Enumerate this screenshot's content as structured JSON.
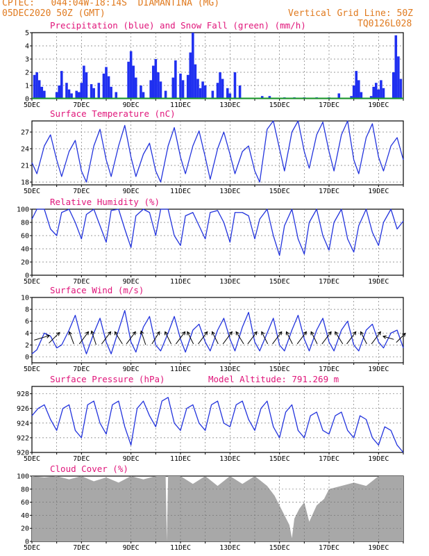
{
  "header": {
    "left_line1": "CPTEC:   044:04W-18:14S  DIAMANTINA (MG)",
    "left_line2": "05DEC2020 50Z (GMT)",
    "right_line1": "Vertical Grid Line: 50Z",
    "right_line2": "TQ0126L028"
  },
  "colors": {
    "header": "#e07a1f",
    "panel_title": "#e0157a",
    "line": "#2233dd",
    "precip_bar": "#1f2ff0",
    "snow": "#1a9a2a",
    "cloud": "#a8a8a8",
    "grid": "#777777"
  },
  "chart_data": [
    {
      "type": "bar",
      "title": "Precipitation (blue) and Snow Fall (green) (mm/h)",
      "x_labels": [
        "5DEC",
        "7DEC",
        "9DEC",
        "11DEC",
        "13DEC",
        "15DEC",
        "17DEC",
        "19DEC"
      ],
      "ylim": [
        0,
        5
      ],
      "yticks": [
        0,
        1,
        2,
        3,
        4,
        5
      ],
      "days": [
        5,
        20
      ],
      "series": [
        {
          "name": "Precipitation",
          "x": [
            5.1,
            5.2,
            5.3,
            5.4,
            5.5,
            6.0,
            6.1,
            6.2,
            6.4,
            6.5,
            6.6,
            6.8,
            6.9,
            7.0,
            7.1,
            7.2,
            7.4,
            7.5,
            7.7,
            7.9,
            8.0,
            8.1,
            8.2,
            8.4,
            8.9,
            9.0,
            9.1,
            9.2,
            9.4,
            9.5,
            9.8,
            9.9,
            10.0,
            10.1,
            10.2,
            10.4,
            10.7,
            10.8,
            11.0,
            11.1,
            11.3,
            11.4,
            11.5,
            11.6,
            11.7,
            11.8,
            11.9,
            12.0,
            12.3,
            12.5,
            12.6,
            12.7,
            12.9,
            13.0,
            13.2,
            13.4,
            14.3,
            14.6,
            15.2,
            15.6,
            16.0,
            16.5,
            17.0,
            17.4,
            17.9,
            18.0,
            18.1,
            18.2,
            18.3,
            18.7,
            18.8,
            18.9,
            19.0,
            19.1,
            19.2,
            19.6,
            19.7,
            19.8,
            19.9
          ],
          "values": [
            1.8,
            2.0,
            1.4,
            0.9,
            0.6,
            0.5,
            1.0,
            2.1,
            1.2,
            0.7,
            0.4,
            0.6,
            0.5,
            1.2,
            2.5,
            2.0,
            1.1,
            0.8,
            1.2,
            1.9,
            2.4,
            1.7,
            0.9,
            0.5,
            2.8,
            3.6,
            2.5,
            1.6,
            1.0,
            0.5,
            1.4,
            2.5,
            3.0,
            2.0,
            1.3,
            0.6,
            1.6,
            2.9,
            1.9,
            1.4,
            1.8,
            3.5,
            5.0,
            2.6,
            1.5,
            0.8,
            1.3,
            1.0,
            0.6,
            1.2,
            2.0,
            1.5,
            0.8,
            0.4,
            2.0,
            1.0,
            0.2,
            0.2,
            0.1,
            0.1,
            0.1,
            0.1,
            0.1,
            0.4,
            0.2,
            1.0,
            2.1,
            1.4,
            0.5,
            0.2,
            0.9,
            1.2,
            0.7,
            1.4,
            0.8,
            2.0,
            4.8,
            3.2,
            1.5
          ]
        },
        {
          "name": "Snow Fall",
          "x": [
            5,
            20
          ],
          "values": [
            0,
            0
          ]
        }
      ]
    },
    {
      "type": "line",
      "title": "Surface Temperature (nC)",
      "x_labels": [
        "5DEC",
        "7DEC",
        "9DEC",
        "11DEC",
        "13DEC",
        "15DEC",
        "17DEC",
        "19DEC"
      ],
      "ylim": [
        17.5,
        29
      ],
      "yticks": [
        18,
        21,
        24,
        27
      ],
      "days": [
        5,
        20
      ],
      "series": [
        {
          "name": "Temperature",
          "x": [
            5.0,
            5.2,
            5.5,
            5.75,
            6.0,
            6.2,
            6.5,
            6.75,
            7.0,
            7.2,
            7.5,
            7.75,
            8.0,
            8.2,
            8.5,
            8.75,
            9.0,
            9.2,
            9.5,
            9.75,
            10.0,
            10.2,
            10.5,
            10.75,
            11.0,
            11.2,
            11.5,
            11.75,
            12.0,
            12.2,
            12.5,
            12.75,
            13.0,
            13.2,
            13.5,
            13.75,
            14.0,
            14.2,
            14.5,
            14.75,
            15.0,
            15.2,
            15.5,
            15.75,
            16.0,
            16.2,
            16.5,
            16.75,
            17.0,
            17.2,
            17.5,
            17.75,
            18.0,
            18.2,
            18.5,
            18.75,
            19.0,
            19.2,
            19.5,
            19.75,
            20.0
          ],
          "values": [
            21.5,
            19.5,
            24.5,
            26.5,
            22.0,
            19.0,
            23.5,
            25.5,
            20.0,
            18.0,
            24.5,
            27.5,
            22.0,
            19.0,
            24.5,
            28.2,
            22.5,
            19.0,
            23.0,
            25.0,
            20.0,
            18.0,
            24.5,
            27.8,
            22.5,
            19.5,
            24.5,
            27.2,
            22.5,
            18.5,
            24.0,
            27.0,
            23.0,
            19.5,
            23.5,
            24.5,
            20.0,
            18.0,
            27.5,
            29.0,
            24.0,
            20.0,
            27.0,
            29.0,
            23.5,
            20.5,
            26.5,
            28.8,
            23.5,
            20.0,
            26.5,
            29.0,
            22.0,
            19.5,
            26.0,
            28.5,
            22.5,
            20.0,
            24.5,
            26.0,
            22.0
          ]
        }
      ]
    },
    {
      "type": "line",
      "title": "Relative Humidity (%)",
      "x_labels": [
        "5DEC",
        "7DEC",
        "9DEC",
        "11DEC",
        "13DEC",
        "15DEC",
        "17DEC",
        "19DEC"
      ],
      "ylim": [
        0,
        100
      ],
      "yticks": [
        0,
        20,
        40,
        60,
        80,
        100
      ],
      "days": [
        5,
        20
      ],
      "series": [
        {
          "name": "Humidity",
          "x": [
            5.0,
            5.2,
            5.5,
            5.75,
            6.0,
            6.2,
            6.5,
            6.75,
            7.0,
            7.2,
            7.5,
            7.75,
            8.0,
            8.2,
            8.5,
            8.75,
            9.0,
            9.2,
            9.5,
            9.75,
            10.0,
            10.2,
            10.5,
            10.75,
            11.0,
            11.2,
            11.5,
            11.75,
            12.0,
            12.2,
            12.5,
            12.75,
            13.0,
            13.2,
            13.5,
            13.75,
            14.0,
            14.2,
            14.5,
            14.75,
            15.0,
            15.2,
            15.5,
            15.75,
            16.0,
            16.2,
            16.5,
            16.75,
            17.0,
            17.2,
            17.5,
            17.75,
            18.0,
            18.2,
            18.5,
            18.75,
            19.0,
            19.2,
            19.5,
            19.75,
            20.0
          ],
          "values": [
            85,
            100,
            100,
            70,
            60,
            95,
            100,
            80,
            55,
            92,
            100,
            75,
            50,
            98,
            100,
            70,
            42,
            90,
            100,
            95,
            60,
            100,
            100,
            60,
            45,
            90,
            95,
            75,
            55,
            95,
            98,
            80,
            50,
            95,
            95,
            90,
            55,
            85,
            100,
            60,
            30,
            75,
            100,
            55,
            32,
            80,
            100,
            60,
            38,
            80,
            100,
            55,
            35,
            75,
            100,
            65,
            45,
            80,
            100,
            70,
            82
          ]
        }
      ]
    },
    {
      "type": "line",
      "title": "Surface Wind (m/s)",
      "x_labels": [
        "5DEC",
        "7DEC",
        "9DEC",
        "11DEC",
        "13DEC",
        "15DEC",
        "17DEC",
        "19DEC"
      ],
      "ylim": [
        -1,
        10
      ],
      "yticks": [
        0,
        2,
        4,
        6,
        8,
        10
      ],
      "days": [
        5,
        20
      ],
      "series": [
        {
          "name": "Wind speed",
          "x": [
            5.0,
            5.2,
            5.5,
            5.75,
            6.0,
            6.2,
            6.5,
            6.75,
            7.0,
            7.2,
            7.5,
            7.75,
            8.0,
            8.2,
            8.5,
            8.75,
            9.0,
            9.2,
            9.5,
            9.75,
            10.0,
            10.2,
            10.5,
            10.75,
            11.0,
            11.2,
            11.5,
            11.75,
            12.0,
            12.2,
            12.5,
            12.75,
            13.0,
            13.2,
            13.5,
            13.75,
            14.0,
            14.2,
            14.5,
            14.75,
            15.0,
            15.2,
            15.5,
            15.75,
            16.0,
            16.2,
            16.5,
            16.75,
            17.0,
            17.2,
            17.5,
            17.75,
            18.0,
            18.2,
            18.5,
            18.75,
            19.0,
            19.2,
            19.5,
            19.75,
            20.0
          ],
          "values": [
            0.5,
            1.2,
            4.0,
            3.5,
            1.5,
            2.0,
            4.5,
            7.0,
            3.0,
            0.5,
            4.0,
            6.5,
            2.5,
            0.5,
            4.5,
            7.8,
            2.5,
            0.8,
            5.0,
            6.8,
            2.0,
            1.0,
            4.0,
            6.8,
            3.0,
            0.8,
            4.5,
            5.5,
            2.5,
            1.0,
            4.5,
            6.5,
            3.0,
            1.0,
            5.0,
            7.5,
            2.5,
            1.0,
            4.0,
            6.5,
            2.0,
            1.0,
            4.5,
            7.0,
            3.0,
            1.0,
            4.5,
            6.5,
            2.5,
            1.0,
            4.5,
            6.0,
            2.0,
            1.0,
            4.5,
            5.5,
            2.5,
            1.5,
            4.0,
            4.5,
            1.5
          ]
        }
      ],
      "arrows": [
        {
          "x": 5.4,
          "u": 1,
          "v": 0.3
        },
        {
          "x": 5.9,
          "u": 0.7,
          "v": 0.7
        },
        {
          "x": 6.6,
          "u": -0.3,
          "v": 0.8
        },
        {
          "x": 7.1,
          "u": 0.6,
          "v": 0.8
        },
        {
          "x": 7.5,
          "u": -0.3,
          "v": 0.9
        },
        {
          "x": 8.0,
          "u": 0.6,
          "v": 0.8
        },
        {
          "x": 8.5,
          "u": -0.5,
          "v": 0.8
        },
        {
          "x": 9.0,
          "u": 0.6,
          "v": 0.8
        },
        {
          "x": 9.5,
          "u": -0.3,
          "v": 0.9
        },
        {
          "x": 10.0,
          "u": 0.5,
          "v": 0.8
        },
        {
          "x": 10.5,
          "u": -0.4,
          "v": 0.8
        },
        {
          "x": 11.0,
          "u": 0.6,
          "v": 0.8
        },
        {
          "x": 11.4,
          "u": -0.4,
          "v": 0.8
        },
        {
          "x": 11.9,
          "u": 0.6,
          "v": 0.8
        },
        {
          "x": 12.4,
          "u": -0.4,
          "v": 0.8
        },
        {
          "x": 12.9,
          "u": 0.6,
          "v": 0.8
        },
        {
          "x": 13.4,
          "u": -0.5,
          "v": 0.8
        },
        {
          "x": 13.9,
          "u": 0.6,
          "v": 0.8
        },
        {
          "x": 14.4,
          "u": -0.4,
          "v": 0.8
        },
        {
          "x": 14.9,
          "u": 0.6,
          "v": 0.8
        },
        {
          "x": 15.4,
          "u": -0.4,
          "v": 0.8
        },
        {
          "x": 15.9,
          "u": 0.6,
          "v": 0.8
        },
        {
          "x": 16.4,
          "u": -0.4,
          "v": 0.8
        },
        {
          "x": 16.9,
          "u": 0.6,
          "v": 0.8
        },
        {
          "x": 17.4,
          "u": -0.5,
          "v": 0.8
        },
        {
          "x": 17.9,
          "u": 0.6,
          "v": 0.8
        },
        {
          "x": 18.4,
          "u": -0.4,
          "v": 0.8
        },
        {
          "x": 18.9,
          "u": 0.6,
          "v": 0.8
        },
        {
          "x": 19.4,
          "u": -0.7,
          "v": 0.2
        },
        {
          "x": 19.9,
          "u": 0.6,
          "v": 0.6
        }
      ]
    },
    {
      "type": "line",
      "title": "Surface Pressure (hPa)",
      "subtitle": "Model Altitude: 791.269 m",
      "x_labels": [
        "5DEC",
        "7DEC",
        "9DEC",
        "11DEC",
        "13DEC",
        "15DEC",
        "17DEC",
        "19DEC"
      ],
      "ylim": [
        920,
        929
      ],
      "yticks": [
        920,
        922,
        924,
        926,
        928
      ],
      "days": [
        5,
        20
      ],
      "series": [
        {
          "name": "Pressure",
          "x": [
            5.0,
            5.25,
            5.5,
            5.75,
            6.0,
            6.25,
            6.5,
            6.75,
            7.0,
            7.25,
            7.5,
            7.75,
            8.0,
            8.25,
            8.5,
            8.75,
            9.0,
            9.25,
            9.5,
            9.75,
            10.0,
            10.25,
            10.5,
            10.75,
            11.0,
            11.25,
            11.5,
            11.75,
            12.0,
            12.25,
            12.5,
            12.75,
            13.0,
            13.25,
            13.5,
            13.75,
            14.0,
            14.25,
            14.5,
            14.75,
            15.0,
            15.25,
            15.5,
            15.75,
            16.0,
            16.25,
            16.5,
            16.75,
            17.0,
            17.25,
            17.5,
            17.75,
            18.0,
            18.25,
            18.5,
            18.75,
            19.0,
            19.25,
            19.5,
            19.75,
            20.0
          ],
          "values": [
            925,
            926,
            926.5,
            924.5,
            923,
            926,
            926.5,
            923,
            922,
            926.5,
            927,
            924,
            922.5,
            926.5,
            927,
            923.5,
            921,
            926,
            927,
            925,
            923.5,
            927,
            927.5,
            924,
            923,
            926,
            926.5,
            924,
            923,
            926.5,
            927,
            924,
            923.5,
            926.5,
            927,
            924.5,
            923,
            926,
            927,
            923.5,
            922,
            925.5,
            926.5,
            923,
            922,
            925,
            925.5,
            923,
            922.5,
            925,
            925.5,
            923,
            922,
            925,
            924.5,
            922,
            921,
            923.5,
            923,
            921,
            920
          ]
        }
      ]
    },
    {
      "type": "area",
      "title": "Cloud Cover (%)",
      "x_labels": [
        "5DEC",
        "7DEC",
        "9DEC",
        "11DEC",
        "13DEC",
        "15DEC",
        "17DEC",
        "19DEC"
      ],
      "ylim": [
        0,
        100
      ],
      "yticks": [
        0,
        20,
        40,
        60,
        80,
        100
      ],
      "days": [
        5,
        20
      ],
      "series": [
        {
          "name": "Cloud cover",
          "x": [
            5.0,
            5.5,
            6.0,
            6.5,
            7.0,
            7.5,
            8.0,
            8.5,
            9.0,
            9.5,
            10.0,
            10.4,
            10.45,
            10.5,
            11.0,
            11.5,
            12.0,
            12.5,
            13.0,
            13.5,
            14.0,
            14.5,
            14.8,
            15.0,
            15.2,
            15.4,
            15.5,
            15.6,
            15.8,
            16.0,
            16.2,
            16.5,
            16.8,
            17.0,
            17.5,
            18.0,
            18.5,
            19.0,
            19.5,
            20.0
          ],
          "values": [
            100,
            98,
            100,
            95,
            100,
            92,
            98,
            90,
            100,
            95,
            100,
            100,
            0,
            100,
            100,
            88,
            100,
            85,
            100,
            88,
            100,
            85,
            70,
            55,
            40,
            25,
            5,
            35,
            50,
            60,
            30,
            55,
            65,
            80,
            85,
            90,
            85,
            100,
            100,
            100
          ]
        }
      ]
    }
  ]
}
